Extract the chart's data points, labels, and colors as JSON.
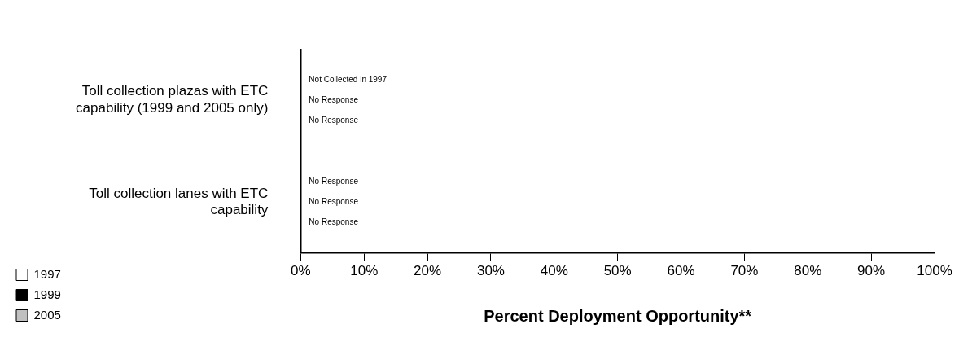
{
  "chart_data": {
    "type": "bar",
    "orientation": "horizontal",
    "xlabel": "Percent Deployment Opportunity**",
    "categories": [
      "Toll collection plazas with ETC capability (1999 and 2005 only)",
      "Toll collection lanes with ETC capability"
    ],
    "series": [
      {
        "name": "1997",
        "color": "#ffffff",
        "values": [
          null,
          null
        ],
        "value_labels": [
          "Not Collected in 1997",
          "No Response"
        ]
      },
      {
        "name": "1999",
        "color": "#000000",
        "values": [
          null,
          null
        ],
        "value_labels": [
          "No Response",
          "No Response"
        ]
      },
      {
        "name": "2005",
        "color": "#c0c0c0",
        "values": [
          null,
          null
        ],
        "value_labels": [
          "No Response",
          "No Response"
        ]
      }
    ],
    "xlim": [
      0,
      100
    ],
    "xticks": [
      {
        "value": 0,
        "label": "0%"
      },
      {
        "value": 10,
        "label": "10%"
      },
      {
        "value": 20,
        "label": "20%"
      },
      {
        "value": 30,
        "label": "30%"
      },
      {
        "value": 40,
        "label": "40%"
      },
      {
        "value": 50,
        "label": "50%"
      },
      {
        "value": 60,
        "label": "60%"
      },
      {
        "value": 70,
        "label": "70%"
      },
      {
        "value": 80,
        "label": "80%"
      },
      {
        "value": 90,
        "label": "90%"
      },
      {
        "value": 100,
        "label": "100%"
      }
    ],
    "grid": false,
    "legend": "bottom left"
  }
}
